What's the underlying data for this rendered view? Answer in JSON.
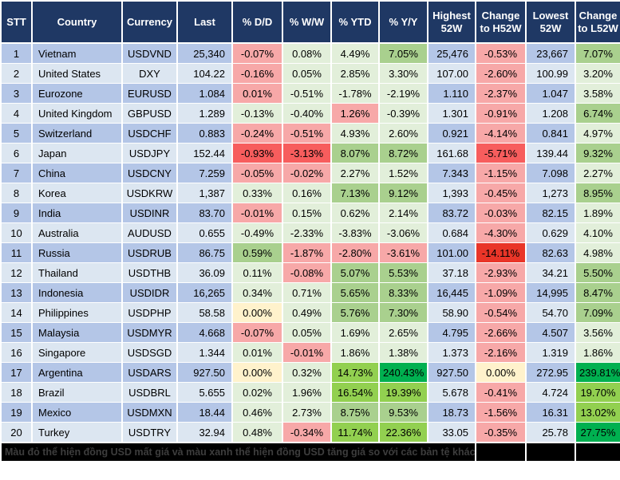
{
  "palette": {
    "header_bg": "#1f3864",
    "row_odd": "#b4c6e7",
    "row_even": "#dce6f1",
    "lg": "#e2efda",
    "mg": "#a9d08e",
    "bg": "#92d050",
    "vg": "#00b050",
    "yl": "#fff2cc",
    "pk": "#f7a8a8",
    "rd": "#f75d5d",
    "vr": "#e93528",
    "footer_bg": "#000000",
    "footer_text": "#3d3d3d"
  },
  "table": {
    "columns": [
      {
        "key": "stt",
        "label": "STT",
        "type": "text",
        "align": "center"
      },
      {
        "key": "country",
        "label": "Country",
        "type": "text",
        "align": "left"
      },
      {
        "key": "currency",
        "label": "Currency",
        "type": "text",
        "align": "center"
      },
      {
        "key": "last",
        "label": "Last",
        "type": "num"
      },
      {
        "key": "dd",
        "label": "% D/D",
        "type": "pct"
      },
      {
        "key": "ww",
        "label": "% W/W",
        "type": "pct"
      },
      {
        "key": "ytd",
        "label": "% YTD",
        "type": "pct"
      },
      {
        "key": "yy",
        "label": "% Y/Y",
        "type": "pct"
      },
      {
        "key": "h52",
        "label": "Highest 52W",
        "type": "num"
      },
      {
        "key": "ch52",
        "label": "Change to H52W",
        "type": "pct"
      },
      {
        "key": "l52",
        "label": "Lowest 52W",
        "type": "num"
      },
      {
        "key": "cl52",
        "label": "Change to L52W",
        "type": "pct"
      }
    ],
    "rows": [
      {
        "stt": "1",
        "country": "Vietnam",
        "currency": "USDVND",
        "last": "25,340",
        "dd": {
          "v": "-0.07%",
          "c": "pk"
        },
        "ww": {
          "v": "0.08%",
          "c": "lg"
        },
        "ytd": {
          "v": "4.49%",
          "c": "lg"
        },
        "yy": {
          "v": "7.05%",
          "c": "mg"
        },
        "h52": "25,476",
        "ch52": {
          "v": "-0.53%",
          "c": "pk"
        },
        "l52": "23,667",
        "cl52": {
          "v": "7.07%",
          "c": "mg"
        }
      },
      {
        "stt": "2",
        "country": "United States",
        "currency": "DXY",
        "last": "104.22",
        "dd": {
          "v": "-0.16%",
          "c": "pk"
        },
        "ww": {
          "v": "0.05%",
          "c": "lg"
        },
        "ytd": {
          "v": "2.85%",
          "c": "lg"
        },
        "yy": {
          "v": "3.30%",
          "c": "lg"
        },
        "h52": "107.00",
        "ch52": {
          "v": "-2.60%",
          "c": "pk"
        },
        "l52": "100.99",
        "cl52": {
          "v": "3.20%",
          "c": "lg"
        }
      },
      {
        "stt": "3",
        "country": "Eurozone",
        "currency": "EURUSD",
        "last": "1.084",
        "dd": {
          "v": "0.01%",
          "c": "pk"
        },
        "ww": {
          "v": "-0.51%",
          "c": "lg"
        },
        "ytd": {
          "v": "-1.78%",
          "c": "lg"
        },
        "yy": {
          "v": "-2.19%",
          "c": "lg"
        },
        "h52": "1.110",
        "ch52": {
          "v": "-2.37%",
          "c": "pk"
        },
        "l52": "1.047",
        "cl52": {
          "v": "3.58%",
          "c": "lg"
        }
      },
      {
        "stt": "4",
        "country": "United Kingdom",
        "currency": "GBPUSD",
        "last": "1.289",
        "dd": {
          "v": "-0.13%",
          "c": "lg"
        },
        "ww": {
          "v": "-0.40%",
          "c": "lg"
        },
        "ytd": {
          "v": "1.26%",
          "c": "pk"
        },
        "yy": {
          "v": "-0.39%",
          "c": "lg"
        },
        "h52": "1.301",
        "ch52": {
          "v": "-0.91%",
          "c": "pk"
        },
        "l52": "1.208",
        "cl52": {
          "v": "6.74%",
          "c": "mg"
        }
      },
      {
        "stt": "5",
        "country": "Switzerland",
        "currency": "USDCHF",
        "last": "0.883",
        "dd": {
          "v": "-0.24%",
          "c": "pk"
        },
        "ww": {
          "v": "-0.51%",
          "c": "pk"
        },
        "ytd": {
          "v": "4.93%",
          "c": "lg"
        },
        "yy": {
          "v": "2.60%",
          "c": "lg"
        },
        "h52": "0.921",
        "ch52": {
          "v": "-4.14%",
          "c": "pk"
        },
        "l52": "0.841",
        "cl52": {
          "v": "4.97%",
          "c": "lg"
        }
      },
      {
        "stt": "6",
        "country": "Japan",
        "currency": "USDJPY",
        "last": "152.44",
        "dd": {
          "v": "-0.93%",
          "c": "rd"
        },
        "ww": {
          "v": "-3.13%",
          "c": "rd"
        },
        "ytd": {
          "v": "8.07%",
          "c": "mg"
        },
        "yy": {
          "v": "8.72%",
          "c": "mg"
        },
        "h52": "161.68",
        "ch52": {
          "v": "-5.71%",
          "c": "rd"
        },
        "l52": "139.44",
        "cl52": {
          "v": "9.32%",
          "c": "mg"
        }
      },
      {
        "stt": "7",
        "country": "China",
        "currency": "USDCNY",
        "last": "7.259",
        "dd": {
          "v": "-0.05%",
          "c": "pk"
        },
        "ww": {
          "v": "-0.02%",
          "c": "pk"
        },
        "ytd": {
          "v": "2.27%",
          "c": "lg"
        },
        "yy": {
          "v": "1.52%",
          "c": "lg"
        },
        "h52": "7.343",
        "ch52": {
          "v": "-1.15%",
          "c": "pk"
        },
        "l52": "7.098",
        "cl52": {
          "v": "2.27%",
          "c": "lg"
        }
      },
      {
        "stt": "8",
        "country": "Korea",
        "currency": "USDKRW",
        "last": "1,387",
        "dd": {
          "v": "0.33%",
          "c": "lg"
        },
        "ww": {
          "v": "0.16%",
          "c": "lg"
        },
        "ytd": {
          "v": "7.13%",
          "c": "mg"
        },
        "yy": {
          "v": "9.12%",
          "c": "mg"
        },
        "h52": "1,393",
        "ch52": {
          "v": "-0.45%",
          "c": "pk"
        },
        "l52": "1,273",
        "cl52": {
          "v": "8.95%",
          "c": "mg"
        }
      },
      {
        "stt": "9",
        "country": "India",
        "currency": "USDINR",
        "last": "83.70",
        "dd": {
          "v": "-0.01%",
          "c": "pk"
        },
        "ww": {
          "v": "0.15%",
          "c": "lg"
        },
        "ytd": {
          "v": "0.62%",
          "c": "lg"
        },
        "yy": {
          "v": "2.14%",
          "c": "lg"
        },
        "h52": "83.72",
        "ch52": {
          "v": "-0.03%",
          "c": "pk"
        },
        "l52": "82.15",
        "cl52": {
          "v": "1.89%",
          "c": "lg"
        }
      },
      {
        "stt": "10",
        "country": "Australia",
        "currency": "AUDUSD",
        "last": "0.655",
        "dd": {
          "v": "-0.49%",
          "c": "lg"
        },
        "ww": {
          "v": "-2.33%",
          "c": "lg"
        },
        "ytd": {
          "v": "-3.83%",
          "c": "lg"
        },
        "yy": {
          "v": "-3.06%",
          "c": "lg"
        },
        "h52": "0.684",
        "ch52": {
          "v": "-4.30%",
          "c": "pk"
        },
        "l52": "0.629",
        "cl52": {
          "v": "4.10%",
          "c": "lg"
        }
      },
      {
        "stt": "11",
        "country": "Russia",
        "currency": "USDRUB",
        "last": "86.75",
        "dd": {
          "v": "0.59%",
          "c": "mg"
        },
        "ww": {
          "v": "-1.87%",
          "c": "pk"
        },
        "ytd": {
          "v": "-2.80%",
          "c": "pk"
        },
        "yy": {
          "v": "-3.61%",
          "c": "pk"
        },
        "h52": "101.00",
        "ch52": {
          "v": "-14.11%",
          "c": "vr"
        },
        "l52": "82.63",
        "cl52": {
          "v": "4.98%",
          "c": "lg"
        }
      },
      {
        "stt": "12",
        "country": "Thailand",
        "currency": "USDTHB",
        "last": "36.09",
        "dd": {
          "v": "0.11%",
          "c": "lg"
        },
        "ww": {
          "v": "-0.08%",
          "c": "pk"
        },
        "ytd": {
          "v": "5.07%",
          "c": "mg"
        },
        "yy": {
          "v": "5.53%",
          "c": "mg"
        },
        "h52": "37.18",
        "ch52": {
          "v": "-2.93%",
          "c": "pk"
        },
        "l52": "34.21",
        "cl52": {
          "v": "5.50%",
          "c": "mg"
        }
      },
      {
        "stt": "13",
        "country": "Indonesia",
        "currency": "USDIDR",
        "last": "16,265",
        "dd": {
          "v": "0.34%",
          "c": "lg"
        },
        "ww": {
          "v": "0.71%",
          "c": "lg"
        },
        "ytd": {
          "v": "5.65%",
          "c": "mg"
        },
        "yy": {
          "v": "8.33%",
          "c": "mg"
        },
        "h52": "16,445",
        "ch52": {
          "v": "-1.09%",
          "c": "pk"
        },
        "l52": "14,995",
        "cl52": {
          "v": "8.47%",
          "c": "mg"
        }
      },
      {
        "stt": "14",
        "country": "Philippines",
        "currency": "USDPHP",
        "last": "58.58",
        "dd": {
          "v": "0.00%",
          "c": "yl"
        },
        "ww": {
          "v": "0.49%",
          "c": "lg"
        },
        "ytd": {
          "v": "5.76%",
          "c": "mg"
        },
        "yy": {
          "v": "7.30%",
          "c": "mg"
        },
        "h52": "58.90",
        "ch52": {
          "v": "-0.54%",
          "c": "pk"
        },
        "l52": "54.70",
        "cl52": {
          "v": "7.09%",
          "c": "mg"
        }
      },
      {
        "stt": "15",
        "country": "Malaysia",
        "currency": "USDMYR",
        "last": "4.668",
        "dd": {
          "v": "-0.07%",
          "c": "pk"
        },
        "ww": {
          "v": "0.05%",
          "c": "lg"
        },
        "ytd": {
          "v": "1.69%",
          "c": "lg"
        },
        "yy": {
          "v": "2.65%",
          "c": "lg"
        },
        "h52": "4.795",
        "ch52": {
          "v": "-2.66%",
          "c": "pk"
        },
        "l52": "4.507",
        "cl52": {
          "v": "3.56%",
          "c": "lg"
        }
      },
      {
        "stt": "16",
        "country": "Singapore",
        "currency": "USDSGD",
        "last": "1.344",
        "dd": {
          "v": "0.01%",
          "c": "lg"
        },
        "ww": {
          "v": "-0.01%",
          "c": "pk"
        },
        "ytd": {
          "v": "1.86%",
          "c": "lg"
        },
        "yy": {
          "v": "1.38%",
          "c": "lg"
        },
        "h52": "1.373",
        "ch52": {
          "v": "-2.16%",
          "c": "pk"
        },
        "l52": "1.319",
        "cl52": {
          "v": "1.86%",
          "c": "lg"
        }
      },
      {
        "stt": "17",
        "country": "Argentina",
        "currency": "USDARS",
        "last": "927.50",
        "dd": {
          "v": "0.00%",
          "c": "yl"
        },
        "ww": {
          "v": "0.32%",
          "c": "lg"
        },
        "ytd": {
          "v": "14.73%",
          "c": "bg"
        },
        "yy": {
          "v": "240.43%",
          "c": "vg"
        },
        "h52": "927.50",
        "ch52": {
          "v": "0.00%",
          "c": "yl"
        },
        "l52": "272.95",
        "cl52": {
          "v": "239.81%",
          "c": "vg"
        }
      },
      {
        "stt": "18",
        "country": "Brazil",
        "currency": "USDBRL",
        "last": "5.655",
        "dd": {
          "v": "0.02%",
          "c": "lg"
        },
        "ww": {
          "v": "1.96%",
          "c": "lg"
        },
        "ytd": {
          "v": "16.54%",
          "c": "bg"
        },
        "yy": {
          "v": "19.39%",
          "c": "bg"
        },
        "h52": "5.678",
        "ch52": {
          "v": "-0.41%",
          "c": "pk"
        },
        "l52": "4.724",
        "cl52": {
          "v": "19.70%",
          "c": "bg"
        }
      },
      {
        "stt": "19",
        "country": "Mexico",
        "currency": "USDMXN",
        "last": "18.44",
        "dd": {
          "v": "0.46%",
          "c": "lg"
        },
        "ww": {
          "v": "2.73%",
          "c": "lg"
        },
        "ytd": {
          "v": "8.75%",
          "c": "mg"
        },
        "yy": {
          "v": "9.53%",
          "c": "mg"
        },
        "h52": "18.73",
        "ch52": {
          "v": "-1.56%",
          "c": "pk"
        },
        "l52": "16.31",
        "cl52": {
          "v": "13.02%",
          "c": "bg"
        }
      },
      {
        "stt": "20",
        "country": "Turkey",
        "currency": "USDTRY",
        "last": "32.94",
        "dd": {
          "v": "0.48%",
          "c": "lg"
        },
        "ww": {
          "v": "-0.34%",
          "c": "pk"
        },
        "ytd": {
          "v": "11.74%",
          "c": "bg"
        },
        "yy": {
          "v": "22.36%",
          "c": "bg"
        },
        "h52": "33.05",
        "ch52": {
          "v": "-0.35%",
          "c": "pk"
        },
        "l52": "25.78",
        "cl52": {
          "v": "27.75%",
          "c": "vg"
        }
      }
    ]
  },
  "footer": {
    "note": "Màu đỏ thể hiện đồng USD mất giá và màu xanh thể hiện đồng USD tăng giá so với các bản tệ khác."
  }
}
